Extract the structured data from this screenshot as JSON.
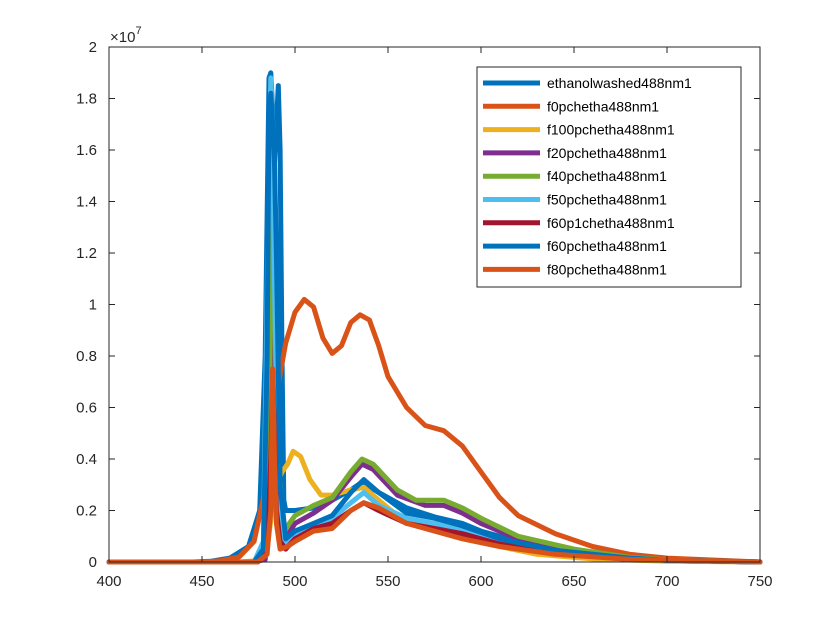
{
  "chart_data": {
    "type": "line",
    "title": "",
    "xlabel": "",
    "ylabel": "",
    "xlim": [
      400,
      750
    ],
    "ylim": [
      0,
      20000000
    ],
    "x_ticks": [
      "400",
      "450",
      "500",
      "550",
      "600",
      "650",
      "700",
      "750"
    ],
    "y_ticks": [
      "0",
      "0.2",
      "0.4",
      "0.6",
      "0.8",
      "1",
      "1.2",
      "1.4",
      "1.6",
      "1.8",
      "2"
    ],
    "y_multiplier_base": "×10",
    "y_multiplier_exp": "7",
    "grid": false,
    "legend_position": "top-right",
    "series": [
      {
        "name": "ethanolwashed488nm1",
        "color": "#0072BD",
        "points": [
          [
            400,
            0
          ],
          [
            445,
            0
          ],
          [
            455,
            30000
          ],
          [
            465,
            150000
          ],
          [
            475,
            600000
          ],
          [
            481,
            2000000
          ],
          [
            484,
            8000000
          ],
          [
            486,
            18800000
          ],
          [
            487,
            19000000
          ],
          [
            488,
            17500000
          ],
          [
            489,
            15500000
          ],
          [
            490,
            17000000
          ],
          [
            491,
            18500000
          ],
          [
            492,
            16000000
          ],
          [
            493,
            8000000
          ],
          [
            494,
            2400000
          ],
          [
            495,
            2000000
          ],
          [
            500,
            2000000
          ],
          [
            510,
            2100000
          ],
          [
            520,
            2400000
          ],
          [
            530,
            2800000
          ],
          [
            536,
            3100000
          ],
          [
            545,
            2700000
          ],
          [
            560,
            2100000
          ],
          [
            575,
            1750000
          ],
          [
            590,
            1500000
          ],
          [
            600,
            1200000
          ],
          [
            620,
            800000
          ],
          [
            650,
            450000
          ],
          [
            680,
            200000
          ],
          [
            700,
            100000
          ],
          [
            750,
            0
          ]
        ]
      },
      {
        "name": "f0pchetha488nm1",
        "color": "#D95319",
        "points": [
          [
            400,
            0
          ],
          [
            450,
            0
          ],
          [
            460,
            50000
          ],
          [
            470,
            200000
          ],
          [
            478,
            800000
          ],
          [
            484,
            2800000
          ],
          [
            490,
            6500000
          ],
          [
            495,
            8500000
          ],
          [
            500,
            9700000
          ],
          [
            505,
            10200000
          ],
          [
            510,
            9900000
          ],
          [
            515,
            8700000
          ],
          [
            520,
            8100000
          ],
          [
            525,
            8400000
          ],
          [
            530,
            9300000
          ],
          [
            535,
            9600000
          ],
          [
            540,
            9400000
          ],
          [
            545,
            8400000
          ],
          [
            550,
            7200000
          ],
          [
            560,
            6000000
          ],
          [
            570,
            5300000
          ],
          [
            580,
            5100000
          ],
          [
            590,
            4500000
          ],
          [
            600,
            3500000
          ],
          [
            610,
            2500000
          ],
          [
            620,
            1800000
          ],
          [
            640,
            1100000
          ],
          [
            660,
            600000
          ],
          [
            680,
            300000
          ],
          [
            700,
            150000
          ],
          [
            750,
            0
          ]
        ]
      },
      {
        "name": "f100pchetha488nm1",
        "color": "#EDB120",
        "points": [
          [
            400,
            0
          ],
          [
            470,
            0
          ],
          [
            480,
            50000
          ],
          [
            485,
            500000
          ],
          [
            488,
            2200000
          ],
          [
            490,
            3000000
          ],
          [
            493,
            3500000
          ],
          [
            496,
            3800000
          ],
          [
            499,
            4300000
          ],
          [
            503,
            4100000
          ],
          [
            508,
            3200000
          ],
          [
            514,
            2600000
          ],
          [
            520,
            2600000
          ],
          [
            530,
            2800000
          ],
          [
            537,
            2900000
          ],
          [
            545,
            2400000
          ],
          [
            555,
            1800000
          ],
          [
            570,
            1400000
          ],
          [
            590,
            1000000
          ],
          [
            610,
            600000
          ],
          [
            630,
            300000
          ],
          [
            660,
            120000
          ],
          [
            700,
            30000
          ],
          [
            750,
            0
          ]
        ]
      },
      {
        "name": "f20pchetha488nm1",
        "color": "#7E2F8E",
        "points": [
          [
            400,
            0
          ],
          [
            478,
            0
          ],
          [
            484,
            100000
          ],
          [
            486,
            2000000
          ],
          [
            487,
            8000000
          ],
          [
            488,
            10600000
          ],
          [
            489,
            9000000
          ],
          [
            490,
            5000000
          ],
          [
            491,
            1500000
          ],
          [
            494,
            800000
          ],
          [
            500,
            1500000
          ],
          [
            510,
            1900000
          ],
          [
            520,
            2400000
          ],
          [
            530,
            3300000
          ],
          [
            536,
            3800000
          ],
          [
            542,
            3600000
          ],
          [
            555,
            2600000
          ],
          [
            570,
            2200000
          ],
          [
            580,
            2200000
          ],
          [
            590,
            1900000
          ],
          [
            600,
            1500000
          ],
          [
            620,
            900000
          ],
          [
            650,
            450000
          ],
          [
            680,
            150000
          ],
          [
            700,
            70000
          ],
          [
            750,
            0
          ]
        ]
      },
      {
        "name": "f40pchetha488nm1",
        "color": "#77AC30",
        "points": [
          [
            400,
            0
          ],
          [
            478,
            0
          ],
          [
            484,
            300000
          ],
          [
            486,
            5000000
          ],
          [
            488,
            15500000
          ],
          [
            489,
            14000000
          ],
          [
            490,
            9000000
          ],
          [
            491,
            4000000
          ],
          [
            494,
            1200000
          ],
          [
            500,
            1800000
          ],
          [
            510,
            2200000
          ],
          [
            520,
            2500000
          ],
          [
            530,
            3500000
          ],
          [
            536,
            4000000
          ],
          [
            542,
            3800000
          ],
          [
            555,
            2800000
          ],
          [
            565,
            2400000
          ],
          [
            580,
            2400000
          ],
          [
            590,
            2100000
          ],
          [
            600,
            1700000
          ],
          [
            620,
            1000000
          ],
          [
            650,
            500000
          ],
          [
            680,
            180000
          ],
          [
            700,
            80000
          ],
          [
            750,
            0
          ]
        ]
      },
      {
        "name": "f50pchetha488nm1",
        "color": "#4DBEEE",
        "points": [
          [
            400,
            0
          ],
          [
            478,
            0
          ],
          [
            483,
            800000
          ],
          [
            486,
            15000000
          ],
          [
            487,
            18800000
          ],
          [
            488,
            17000000
          ],
          [
            489,
            11000000
          ],
          [
            490,
            6000000
          ],
          [
            492,
            1500000
          ],
          [
            495,
            700000
          ],
          [
            500,
            1000000
          ],
          [
            510,
            1300000
          ],
          [
            520,
            1700000
          ],
          [
            530,
            2300000
          ],
          [
            537,
            2700000
          ],
          [
            545,
            2200000
          ],
          [
            560,
            1700000
          ],
          [
            575,
            1500000
          ],
          [
            590,
            1200000
          ],
          [
            610,
            700000
          ],
          [
            640,
            350000
          ],
          [
            680,
            100000
          ],
          [
            750,
            0
          ]
        ]
      },
      {
        "name": "f60p1chetha488nm1",
        "color": "#A2142F",
        "points": [
          [
            400,
            0
          ],
          [
            480,
            0
          ],
          [
            485,
            500000
          ],
          [
            487,
            4000000
          ],
          [
            488,
            7400000
          ],
          [
            489,
            5000000
          ],
          [
            490,
            2000000
          ],
          [
            492,
            800000
          ],
          [
            495,
            500000
          ],
          [
            500,
            900000
          ],
          [
            510,
            1300000
          ],
          [
            520,
            1500000
          ],
          [
            530,
            2000000
          ],
          [
            537,
            2300000
          ],
          [
            545,
            2000000
          ],
          [
            560,
            1500000
          ],
          [
            575,
            1300000
          ],
          [
            590,
            1100000
          ],
          [
            610,
            700000
          ],
          [
            640,
            350000
          ],
          [
            680,
            100000
          ],
          [
            750,
            0
          ]
        ]
      },
      {
        "name": "f60pchetha488nm1",
        "color": "#0072BD",
        "points": [
          [
            400,
            0
          ],
          [
            478,
            0
          ],
          [
            483,
            500000
          ],
          [
            485,
            8000000
          ],
          [
            486,
            17500000
          ],
          [
            487,
            18200000
          ],
          [
            488,
            17000000
          ],
          [
            489,
            15500000
          ],
          [
            490,
            12000000
          ],
          [
            492,
            3000000
          ],
          [
            495,
            900000
          ],
          [
            500,
            1200000
          ],
          [
            510,
            1500000
          ],
          [
            520,
            1800000
          ],
          [
            530,
            2700000
          ],
          [
            537,
            3200000
          ],
          [
            545,
            2700000
          ],
          [
            560,
            1900000
          ],
          [
            575,
            1700000
          ],
          [
            590,
            1400000
          ],
          [
            610,
            900000
          ],
          [
            640,
            450000
          ],
          [
            680,
            150000
          ],
          [
            700,
            70000
          ],
          [
            750,
            0
          ]
        ]
      },
      {
        "name": "f80pchetha488nm1",
        "color": "#D95319",
        "points": [
          [
            400,
            0
          ],
          [
            480,
            0
          ],
          [
            485,
            300000
          ],
          [
            487,
            2000000
          ],
          [
            488,
            7500000
          ],
          [
            489,
            4000000
          ],
          [
            490,
            1500000
          ],
          [
            492,
            500000
          ],
          [
            496,
            600000
          ],
          [
            500,
            800000
          ],
          [
            510,
            1200000
          ],
          [
            520,
            1300000
          ],
          [
            530,
            2000000
          ],
          [
            537,
            2300000
          ],
          [
            545,
            2100000
          ],
          [
            560,
            1500000
          ],
          [
            575,
            1200000
          ],
          [
            590,
            900000
          ],
          [
            610,
            600000
          ],
          [
            640,
            300000
          ],
          [
            680,
            100000
          ],
          [
            750,
            0
          ]
        ]
      }
    ]
  }
}
